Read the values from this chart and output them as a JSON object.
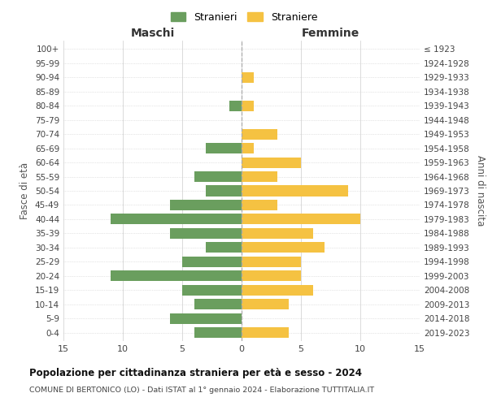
{
  "age_groups_bottom_to_top": [
    "0-4",
    "5-9",
    "10-14",
    "15-19",
    "20-24",
    "25-29",
    "30-34",
    "35-39",
    "40-44",
    "45-49",
    "50-54",
    "55-59",
    "60-64",
    "65-69",
    "70-74",
    "75-79",
    "80-84",
    "85-89",
    "90-94",
    "95-99",
    "100+"
  ],
  "birth_years_bottom_to_top": [
    "2019-2023",
    "2014-2018",
    "2009-2013",
    "2004-2008",
    "1999-2003",
    "1994-1998",
    "1989-1993",
    "1984-1988",
    "1979-1983",
    "1974-1978",
    "1969-1973",
    "1964-1968",
    "1959-1963",
    "1954-1958",
    "1949-1953",
    "1944-1948",
    "1939-1943",
    "1934-1938",
    "1929-1933",
    "1924-1928",
    "≤ 1923"
  ],
  "maschi_bottom_to_top": [
    4,
    6,
    4,
    5,
    11,
    5,
    3,
    6,
    11,
    6,
    3,
    4,
    0,
    3,
    0,
    0,
    1,
    0,
    0,
    0,
    0
  ],
  "femmine_bottom_to_top": [
    4,
    0,
    4,
    6,
    5,
    5,
    7,
    6,
    10,
    3,
    9,
    3,
    5,
    1,
    3,
    0,
    1,
    0,
    1,
    0,
    0
  ],
  "color_maschi": "#6a9e5e",
  "color_femmine": "#f5c242",
  "title": "Popolazione per cittadinanza straniera per età e sesso - 2024",
  "subtitle": "COMUNE DI BERTONICO (LO) - Dati ISTAT al 1° gennaio 2024 - Elaborazione TUTTITALIA.IT",
  "xlabel_left": "Maschi",
  "xlabel_right": "Femmine",
  "ylabel_left": "Fasce di età",
  "ylabel_right": "Anni di nascita",
  "legend_maschi": "Stranieri",
  "legend_femmine": "Straniere",
  "xlim": 15,
  "background_color": "#ffffff"
}
